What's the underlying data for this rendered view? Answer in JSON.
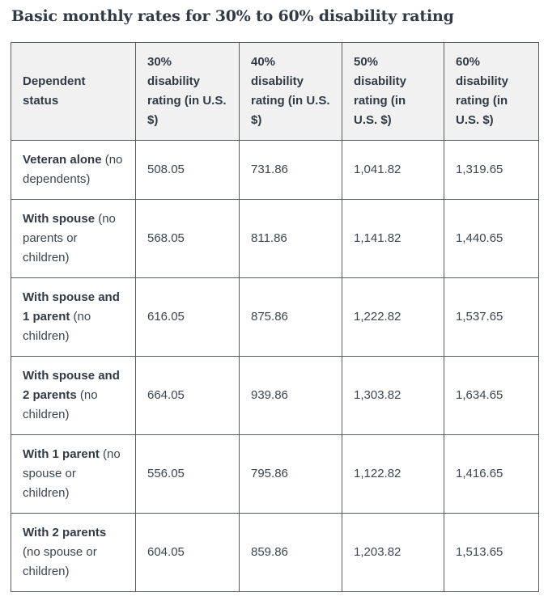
{
  "page": {
    "title": "Basic monthly rates for 30% to 60% disability rating"
  },
  "table": {
    "headers": [
      "Dependent status",
      "30% disability rating (in U.S. $)",
      "40% disability rating (in U.S. $)",
      "50% disability rating (in U.S. $)",
      "60% disability rating (in U.S. $)"
    ],
    "rows": [
      {
        "label_bold": "Veteran alone",
        "label_rest": " (no dependents)",
        "values": [
          "508.05",
          "731.86",
          "1,041.82",
          "1,319.65"
        ]
      },
      {
        "label_bold": "With spouse",
        "label_rest": " (no parents or children)",
        "values": [
          "568.05",
          "811.86",
          "1,141.82",
          "1,440.65"
        ]
      },
      {
        "label_bold": "With spouse and 1 parent",
        "label_rest": " (no children)",
        "values": [
          "616.05",
          "875.86",
          "1,222.82",
          "1,537.65"
        ]
      },
      {
        "label_bold": "With spouse and 2 parents",
        "label_rest": " (no children)",
        "values": [
          "664.05",
          "939.86",
          "1,303.82",
          "1,634.65"
        ]
      },
      {
        "label_bold": "With 1 parent",
        "label_rest": " (no spouse or children)",
        "values": [
          "556.05",
          "795.86",
          "1,122.82",
          "1,416.65"
        ]
      },
      {
        "label_bold": "With 2 parents",
        "label_rest": " (no spouse or children)",
        "values": [
          "604.05",
          "859.86",
          "1,203.82",
          "1,513.65"
        ]
      }
    ]
  },
  "colors": {
    "page_bg": "#ffffff",
    "title_text": "#323a45",
    "border": "#565c65",
    "header_bg": "#f1f1f1",
    "body_bold_text": "#323a45",
    "body_text": "#3d4551"
  }
}
